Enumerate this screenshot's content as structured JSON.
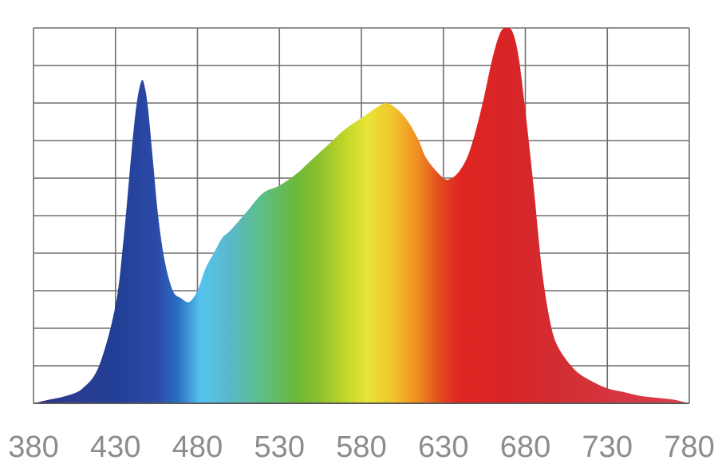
{
  "chart_data": {
    "type": "area",
    "title": "",
    "xlabel": "",
    "ylabel": "",
    "x_ticks": [
      380,
      430,
      480,
      530,
      580,
      630,
      680,
      730,
      780
    ],
    "xlim": [
      380,
      780
    ],
    "ylim": [
      0,
      1
    ],
    "y_gridlines": 10,
    "grid": true,
    "legend": "none",
    "series": [
      {
        "x": [
          380,
          390,
          400,
          410,
          420,
          430,
          435,
          440,
          443,
          446,
          448,
          450,
          453,
          456,
          460,
          465,
          470,
          475,
          480,
          485,
          490,
          495,
          500,
          510,
          520,
          530,
          540,
          550,
          560,
          570,
          580,
          590,
          595,
          600,
          605,
          610,
          615,
          620,
          630,
          635,
          640,
          645,
          650,
          655,
          660,
          665,
          670,
          673,
          676,
          680,
          685,
          690,
          695,
          700,
          710,
          720,
          730,
          740,
          750,
          760,
          770,
          780
        ],
        "values": [
          0.0,
          0.01,
          0.02,
          0.04,
          0.1,
          0.26,
          0.44,
          0.68,
          0.8,
          0.86,
          0.84,
          0.78,
          0.64,
          0.5,
          0.38,
          0.3,
          0.28,
          0.27,
          0.3,
          0.36,
          0.4,
          0.44,
          0.46,
          0.51,
          0.56,
          0.58,
          0.61,
          0.65,
          0.69,
          0.73,
          0.76,
          0.79,
          0.8,
          0.79,
          0.77,
          0.74,
          0.7,
          0.65,
          0.6,
          0.6,
          0.62,
          0.66,
          0.73,
          0.82,
          0.92,
          0.99,
          1.0,
          0.98,
          0.92,
          0.78,
          0.58,
          0.36,
          0.22,
          0.15,
          0.09,
          0.06,
          0.04,
          0.03,
          0.02,
          0.015,
          0.01,
          0.0
        ]
      }
    ],
    "colors": {
      "spectrum": [
        {
          "wavelength": 380,
          "color": "#2a2f7a"
        },
        {
          "wavelength": 400,
          "color": "#2c3b92"
        },
        {
          "wavelength": 430,
          "color": "#223f95"
        },
        {
          "wavelength": 455,
          "color": "#2b4aa8"
        },
        {
          "wavelength": 468,
          "color": "#2a6ec3"
        },
        {
          "wavelength": 482,
          "color": "#55c3ef"
        },
        {
          "wavelength": 500,
          "color": "#5ab8c9"
        },
        {
          "wavelength": 520,
          "color": "#5dbf84"
        },
        {
          "wavelength": 540,
          "color": "#6bb83a"
        },
        {
          "wavelength": 555,
          "color": "#8fc12e"
        },
        {
          "wavelength": 570,
          "color": "#c2d52a"
        },
        {
          "wavelength": 584,
          "color": "#e9e537"
        },
        {
          "wavelength": 600,
          "color": "#f2c12c"
        },
        {
          "wavelength": 615,
          "color": "#ef8b22"
        },
        {
          "wavelength": 628,
          "color": "#e24a1d"
        },
        {
          "wavelength": 640,
          "color": "#df2521"
        },
        {
          "wavelength": 670,
          "color": "#d82427"
        },
        {
          "wavelength": 700,
          "color": "#d22d33"
        },
        {
          "wavelength": 780,
          "color": "#d9404f"
        }
      ],
      "grid": "#6f6f6f",
      "tick_label": "#8c8c8c"
    }
  }
}
